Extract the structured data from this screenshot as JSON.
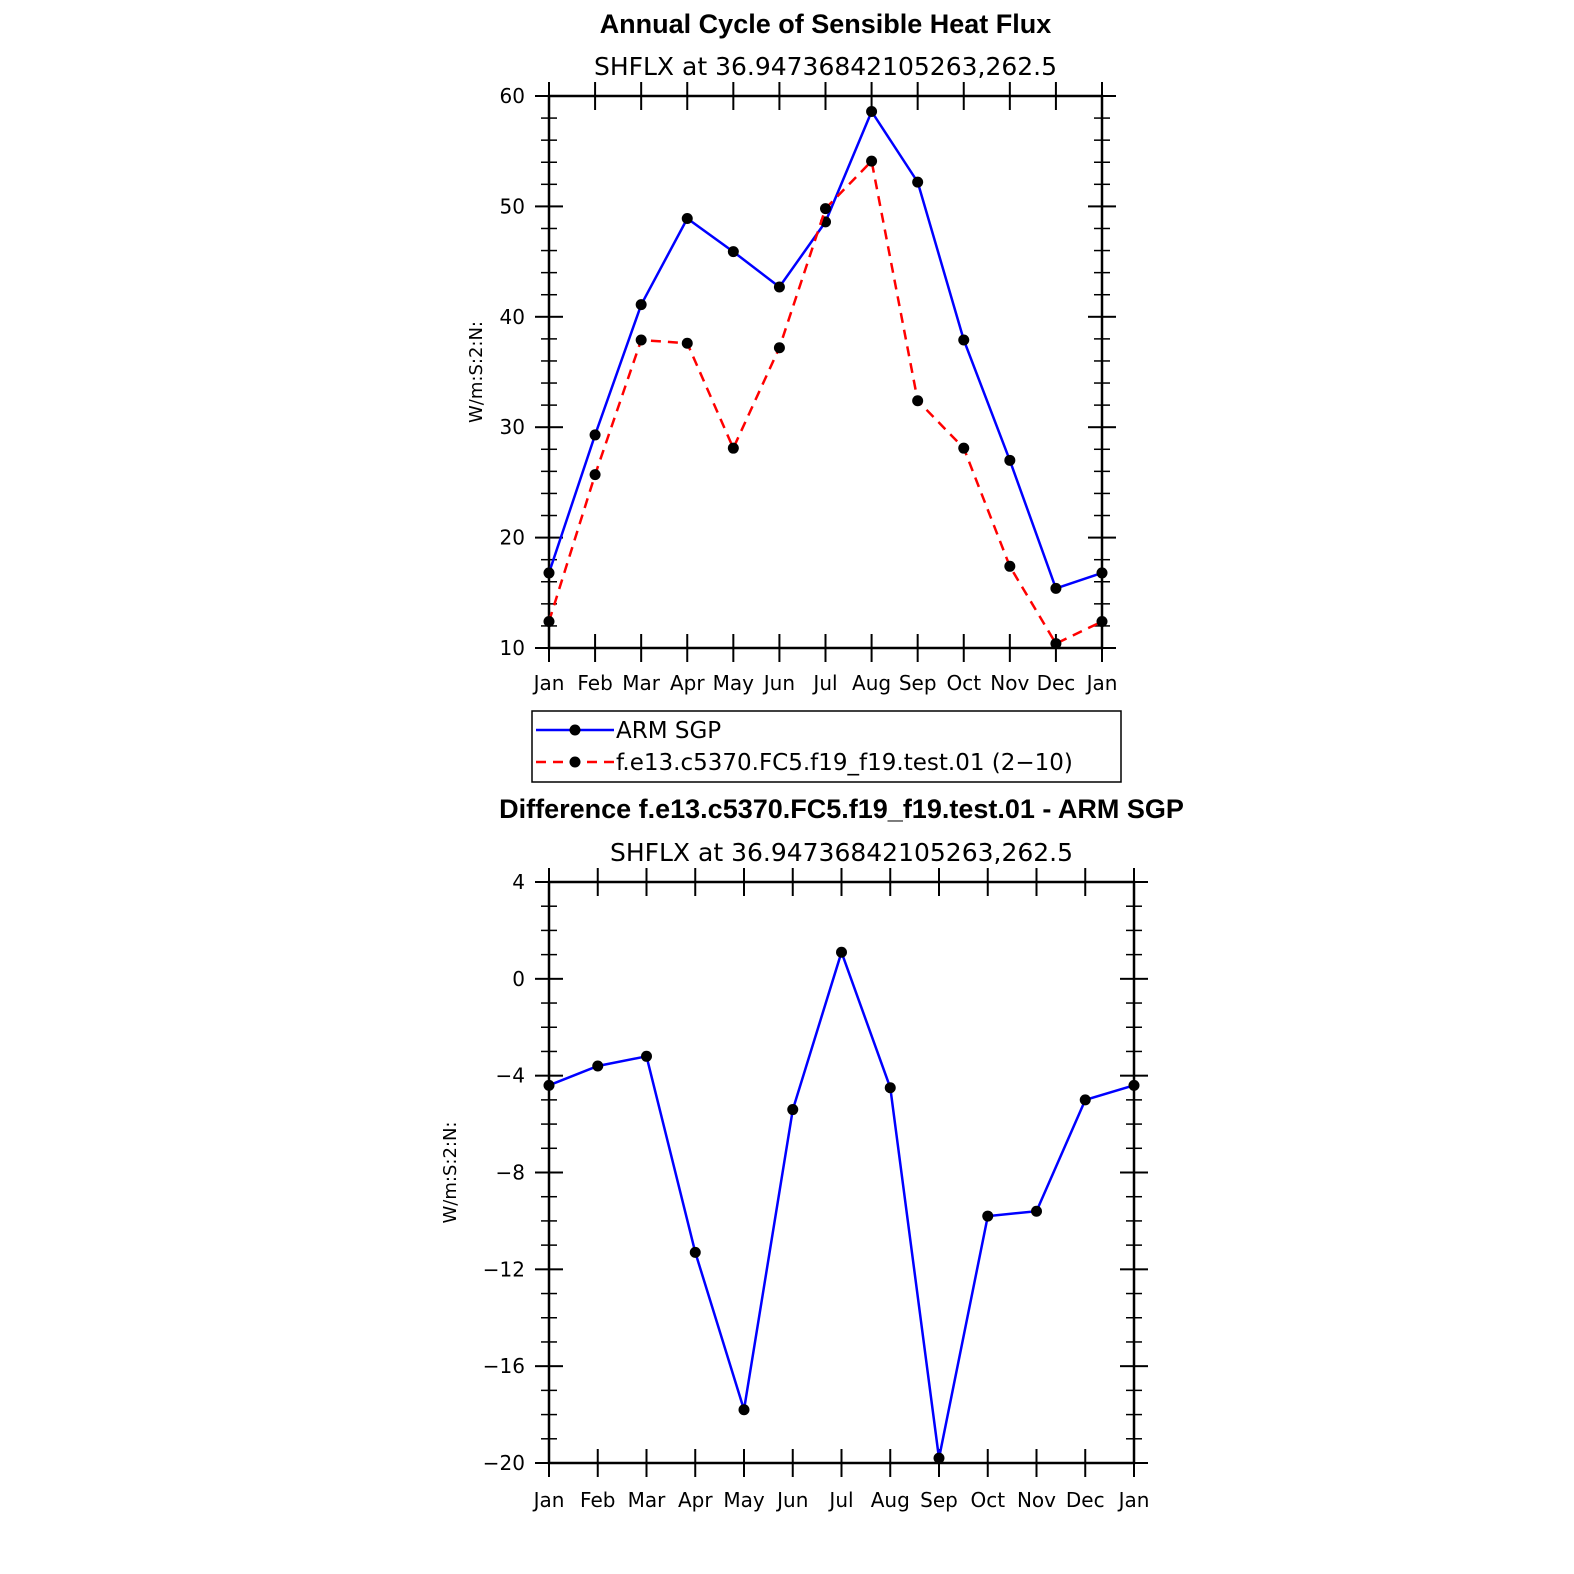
{
  "chart_data": [
    {
      "type": "line",
      "title": "Annual Cycle of Sensible Heat Flux",
      "subtitle": "SHFLX  at  36.94736842105263,262.5",
      "ylabel": "W/m:S:2:N:",
      "xlabel": "",
      "categories": [
        "Jan",
        "Feb",
        "Mar",
        "Apr",
        "May",
        "Jun",
        "Jul",
        "Aug",
        "Sep",
        "Oct",
        "Nov",
        "Dec",
        "Jan"
      ],
      "ylim": [
        10,
        60
      ],
      "yticks": [
        10,
        20,
        30,
        40,
        50,
        60
      ],
      "series": [
        {
          "name": "ARM  SGP",
          "color": "#0000ff",
          "dash": "solid",
          "values": [
            16.8,
            29.3,
            41.1,
            48.9,
            45.9,
            42.7,
            48.6,
            58.6,
            52.2,
            37.9,
            27.0,
            15.4,
            16.8
          ]
        },
        {
          "name": "f.e13.c5370.FC5.f19_f19.test.01  (2−10)",
          "color": "#ff0000",
          "dash": "dashed",
          "values": [
            12.4,
            25.7,
            37.9,
            37.6,
            28.1,
            37.2,
            49.8,
            54.1,
            32.4,
            28.1,
            17.4,
            10.4,
            12.4
          ]
        }
      ],
      "legend": "bottom"
    },
    {
      "type": "line",
      "title": "Difference f.e13.c5370.FC5.f19_f19.test.01 - ARM SGP",
      "subtitle": "SHFLX  at  36.94736842105263,262.5",
      "ylabel": "W/m:S:2:N:",
      "xlabel": "",
      "categories": [
        "Jan",
        "Feb",
        "Mar",
        "Apr",
        "May",
        "Jun",
        "Jul",
        "Aug",
        "Sep",
        "Oct",
        "Nov",
        "Dec",
        "Jan"
      ],
      "ylim": [
        -20,
        4
      ],
      "yticks": [
        -20,
        -16,
        -12,
        -8,
        -4,
        0,
        4
      ],
      "ytick_labels": [
        "−20",
        "−16",
        "−12",
        "−8",
        "−4",
        "0",
        "4"
      ],
      "series": [
        {
          "color": "#0000ff",
          "dash": "solid",
          "values": [
            -4.4,
            -3.6,
            -3.2,
            -11.3,
            -17.8,
            -5.4,
            1.1,
            -4.5,
            -19.8,
            -9.8,
            -9.6,
            -5.0,
            -4.4
          ]
        }
      ]
    }
  ]
}
